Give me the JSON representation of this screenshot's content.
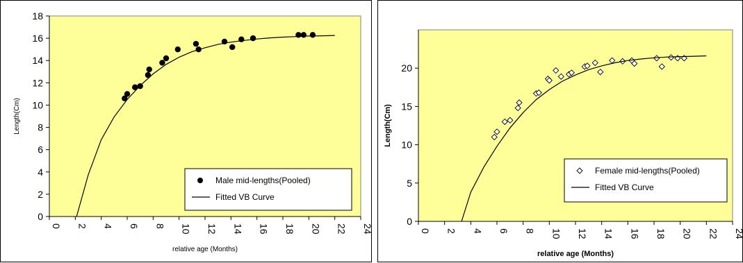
{
  "chart_data": [
    {
      "type": "scatter",
      "xlabel": "relative age (Months)",
      "ylabel": "Length(Cm)",
      "xlim": [
        0,
        24
      ],
      "ylim": [
        0,
        18
      ],
      "x_ticks": [
        0,
        2,
        4,
        6,
        8,
        10,
        12,
        14,
        16,
        18,
        20,
        22,
        24
      ],
      "y_ticks": [
        0,
        2,
        4,
        6,
        8,
        10,
        12,
        14,
        16,
        18
      ],
      "x_tick_labels": [
        "0",
        "2",
        "4",
        "6",
        "8",
        "10",
        "12",
        "14",
        "16",
        "18",
        "20",
        "22",
        "24"
      ],
      "y_tick_labels": [
        "0",
        "2",
        "4",
        "6",
        "8",
        "10",
        "12",
        "14",
        "16",
        "18"
      ],
      "grid": false,
      "plot_background": "#ffff99",
      "legend_position": "bottom-right",
      "series": [
        {
          "name": "Male mid-lengths(Pooled)",
          "style": "marker",
          "marker": "filled-circle",
          "x": [
            5.8,
            6.0,
            6.6,
            7.0,
            7.6,
            7.7,
            8.7,
            9.0,
            9.9,
            11.3,
            11.5,
            13.5,
            14.1,
            14.8,
            15.7,
            19.2,
            19.6,
            20.3
          ],
          "y": [
            10.6,
            11.0,
            11.6,
            11.7,
            12.7,
            13.2,
            13.8,
            14.2,
            15.0,
            15.5,
            15.0,
            15.7,
            15.2,
            15.9,
            16.0,
            16.3,
            16.3,
            16.3
          ]
        },
        {
          "name": "Fitted VB Curve",
          "style": "line",
          "x": [
            2.1,
            3,
            4,
            5,
            6,
            7,
            8,
            9,
            10,
            11,
            12,
            13,
            14,
            15,
            16,
            17,
            18,
            19,
            20,
            21,
            22
          ],
          "y": [
            0.0,
            3.75,
            6.9,
            8.95,
            10.5,
            11.75,
            12.8,
            13.65,
            14.3,
            14.8,
            15.15,
            15.45,
            15.65,
            15.8,
            15.93,
            16.03,
            16.1,
            16.15,
            16.2,
            16.22,
            16.25
          ]
        }
      ]
    },
    {
      "type": "scatter",
      "xlabel": "relative age (Months)",
      "ylabel": "Length(Cm)",
      "xlim": [
        0,
        24
      ],
      "ylim": [
        0,
        25
      ],
      "x_ticks": [
        0,
        2,
        4,
        6,
        8,
        10,
        12,
        14,
        16,
        18,
        20,
        22,
        24
      ],
      "y_ticks": [
        0,
        5,
        10,
        15,
        20
      ],
      "x_tick_labels": [
        "0",
        "2",
        "4",
        "6",
        "8",
        "10",
        "12",
        "14",
        "16",
        "18",
        "20",
        "22",
        "24"
      ],
      "y_tick_labels": [
        "0",
        "5",
        "10",
        "15",
        "20"
      ],
      "grid": false,
      "plot_background": "#ffff99",
      "legend_position": "bottom-right",
      "series": [
        {
          "name": "Female mid-lengths(Pooled)",
          "style": "marker",
          "marker": "open-diamond",
          "x": [
            5.8,
            6.0,
            6.6,
            7.0,
            7.6,
            7.7,
            9.0,
            9.2,
            9.9,
            10.0,
            10.5,
            10.9,
            11.5,
            11.7,
            12.7,
            12.9,
            13.5,
            13.9,
            14.8,
            15.6,
            16.3,
            16.5,
            18.2,
            18.6,
            19.3,
            19.8,
            20.3
          ],
          "y": [
            11.0,
            11.7,
            13.0,
            13.2,
            14.8,
            15.5,
            16.7,
            16.8,
            18.6,
            18.4,
            19.7,
            18.9,
            19.2,
            19.4,
            20.2,
            20.3,
            20.7,
            19.5,
            21.0,
            20.9,
            21.0,
            20.6,
            21.3,
            20.2,
            21.4,
            21.3,
            21.3
          ]
        },
        {
          "name": "Fitted VB Curve",
          "style": "line",
          "x": [
            3.3,
            4,
            5,
            6,
            7,
            8,
            9,
            10,
            11,
            12,
            13,
            14,
            15,
            16,
            17,
            18,
            19,
            20,
            21,
            22
          ],
          "y": [
            0.0,
            3.8,
            7.1,
            9.8,
            12.2,
            14.2,
            15.9,
            17.2,
            18.3,
            19.1,
            19.8,
            20.3,
            20.7,
            21.0,
            21.2,
            21.35,
            21.45,
            21.5,
            21.55,
            21.6
          ]
        }
      ]
    }
  ]
}
